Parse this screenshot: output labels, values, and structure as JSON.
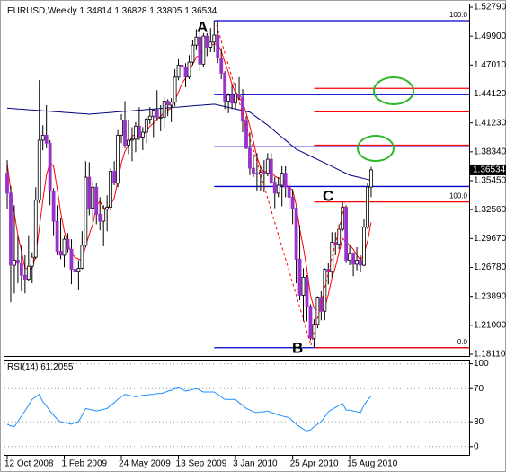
{
  "chart_data": [
    {
      "type": "candlestick",
      "title": "EURUSD,Weekly",
      "categories": [
        "12 Oct 2008",
        null,
        null,
        null,
        null,
        null,
        null,
        null,
        null,
        null,
        null,
        null,
        null,
        null,
        null,
        null,
        "1 Feb 2009",
        null,
        null,
        null,
        null,
        null,
        null,
        null,
        null,
        null,
        null,
        null,
        null,
        null,
        null,
        null,
        "24 May 2009",
        null,
        null,
        null,
        null,
        null,
        null,
        null,
        null,
        null,
        null,
        null,
        null,
        null,
        null,
        null,
        "13 Sep 2009",
        null,
        null,
        null,
        null,
        null,
        null,
        null,
        null,
        null,
        null,
        null,
        null,
        null,
        null,
        null,
        "3 Jan 2010",
        null,
        null,
        null,
        null,
        null,
        null,
        null,
        null,
        null,
        null,
        null,
        null,
        null,
        null,
        null,
        "25 Apr 2010",
        null,
        null,
        null,
        null,
        null,
        null,
        null,
        null,
        null,
        null,
        null,
        null,
        null,
        null,
        null,
        "15 Aug 2010",
        null,
        null,
        null,
        null,
        null,
        null
      ],
      "open": [
        1.362,
        1.342,
        1.27,
        1.275,
        1.272,
        1.26,
        1.256,
        1.269,
        1.278,
        1.335,
        1.395,
        1.4,
        1.392,
        1.344,
        1.314,
        1.284,
        1.28,
        1.296,
        1.286,
        1.266,
        1.264,
        1.267,
        1.29,
        1.358,
        1.327,
        1.348,
        1.321,
        1.314,
        1.326,
        1.328,
        1.364,
        1.352,
        1.4,
        1.415,
        1.39,
        1.395,
        1.396,
        1.409,
        1.398,
        1.403,
        1.416,
        1.419,
        1.425,
        1.418,
        1.418,
        1.434,
        1.43,
        1.433,
        1.458,
        1.47,
        1.468,
        1.458,
        1.473,
        1.49,
        1.498,
        1.471,
        1.499,
        1.488,
        1.493,
        1.5,
        1.477,
        1.462,
        1.434,
        1.44,
        1.432,
        1.441,
        1.438,
        1.414,
        1.387,
        1.367,
        1.362,
        1.361,
        1.363,
        1.362,
        1.376,
        1.353,
        1.342,
        1.35,
        1.362,
        1.348,
        1.338,
        1.327,
        1.276,
        1.24,
        1.258,
        1.229,
        1.197,
        1.211,
        1.238,
        1.224,
        1.266,
        1.264,
        1.293,
        1.291,
        1.306,
        1.328,
        1.275,
        1.282,
        1.271,
        1.275,
        1.27,
        1.308,
        1.34814
      ],
      "high": [
        1.375,
        1.349,
        1.33,
        1.3,
        1.29,
        1.28,
        1.3,
        1.283,
        1.348,
        1.455,
        1.41,
        1.43,
        1.395,
        1.347,
        1.33,
        1.317,
        1.3,
        1.302,
        1.296,
        1.293,
        1.275,
        1.304,
        1.374,
        1.373,
        1.354,
        1.352,
        1.338,
        1.33,
        1.34,
        1.367,
        1.374,
        1.405,
        1.421,
        1.434,
        1.415,
        1.408,
        1.413,
        1.428,
        1.408,
        1.418,
        1.428,
        1.426,
        1.445,
        1.43,
        1.438,
        1.436,
        1.437,
        1.466,
        1.476,
        1.484,
        1.472,
        1.48,
        1.495,
        1.506,
        1.505,
        1.502,
        1.502,
        1.507,
        1.5144,
        1.514,
        1.487,
        1.464,
        1.442,
        1.451,
        1.452,
        1.458,
        1.446,
        1.419,
        1.403,
        1.381,
        1.382,
        1.369,
        1.375,
        1.382,
        1.382,
        1.358,
        1.358,
        1.369,
        1.369,
        1.353,
        1.346,
        1.328,
        1.31,
        1.267,
        1.26,
        1.231,
        1.216,
        1.239,
        1.244,
        1.267,
        1.272,
        1.303,
        1.303,
        1.311,
        1.3333,
        1.33,
        1.29,
        1.283,
        1.288,
        1.28,
        1.316,
        1.352,
        1.36828
      ],
      "low": [
        1.326,
        1.233,
        1.242,
        1.252,
        1.244,
        1.242,
        1.254,
        1.252,
        1.276,
        1.332,
        1.385,
        1.387,
        1.33,
        1.3,
        1.28,
        1.276,
        1.268,
        1.283,
        1.251,
        1.258,
        1.245,
        1.266,
        1.288,
        1.32,
        1.312,
        1.311,
        1.305,
        1.289,
        1.304,
        1.325,
        1.35,
        1.348,
        1.392,
        1.387,
        1.381,
        1.374,
        1.383,
        1.395,
        1.385,
        1.392,
        1.411,
        1.398,
        1.414,
        1.404,
        1.408,
        1.419,
        1.413,
        1.429,
        1.455,
        1.458,
        1.448,
        1.456,
        1.47,
        1.485,
        1.464,
        1.468,
        1.479,
        1.483,
        1.483,
        1.472,
        1.456,
        1.426,
        1.422,
        1.426,
        1.426,
        1.435,
        1.403,
        1.386,
        1.36,
        1.358,
        1.344,
        1.344,
        1.343,
        1.359,
        1.351,
        1.327,
        1.338,
        1.329,
        1.338,
        1.326,
        1.311,
        1.252,
        1.235,
        1.214,
        1.214,
        1.195,
        1.1876,
        1.207,
        1.215,
        1.215,
        1.251,
        1.258,
        1.28,
        1.286,
        1.304,
        1.273,
        1.27,
        1.259,
        1.265,
        1.263,
        1.269,
        1.306,
        1.33805
      ],
      "close": [
        1.342,
        1.27,
        1.275,
        1.272,
        1.26,
        1.256,
        1.269,
        1.278,
        1.335,
        1.395,
        1.4,
        1.392,
        1.344,
        1.314,
        1.284,
        1.28,
        1.296,
        1.286,
        1.266,
        1.264,
        1.267,
        1.29,
        1.358,
        1.327,
        1.348,
        1.321,
        1.314,
        1.326,
        1.328,
        1.364,
        1.352,
        1.4,
        1.415,
        1.39,
        1.395,
        1.396,
        1.409,
        1.398,
        1.403,
        1.416,
        1.419,
        1.425,
        1.418,
        1.418,
        1.434,
        1.43,
        1.433,
        1.458,
        1.47,
        1.468,
        1.458,
        1.473,
        1.49,
        1.498,
        1.471,
        1.499,
        1.488,
        1.493,
        1.5,
        1.477,
        1.462,
        1.434,
        1.44,
        1.432,
        1.441,
        1.438,
        1.414,
        1.387,
        1.367,
        1.362,
        1.361,
        1.363,
        1.362,
        1.376,
        1.353,
        1.342,
        1.35,
        1.362,
        1.348,
        1.338,
        1.327,
        1.276,
        1.24,
        1.258,
        1.229,
        1.197,
        1.211,
        1.238,
        1.224,
        1.266,
        1.264,
        1.293,
        1.291,
        1.306,
        1.328,
        1.275,
        1.282,
        1.271,
        1.275,
        1.27,
        1.308,
        1.34814,
        1.36534
      ],
      "up_color": "#ffffff",
      "down_color": "#9932cc",
      "wick_color": "#000000",
      "series": [
        {
          "color": "#ff0000",
          "values": [
            1.372,
            1.345,
            1.322,
            1.3,
            1.284,
            1.267,
            1.266,
            1.267,
            1.28,
            1.307,
            1.335,
            1.36,
            1.373,
            1.369,
            1.347,
            1.323,
            1.304,
            1.292,
            1.282,
            1.278,
            1.276,
            1.275,
            1.289,
            1.301,
            1.311,
            1.329,
            1.334,
            1.327,
            1.327,
            1.331,
            1.337,
            1.354,
            1.372,
            1.384,
            1.39,
            1.399,
            1.401,
            1.398,
            1.4,
            1.404,
            1.409,
            1.412,
            1.416,
            1.419,
            1.423,
            1.425,
            1.427,
            1.435,
            1.443,
            1.452,
            1.457,
            1.463,
            1.471,
            1.478,
            1.48,
            1.487,
            1.489,
            1.49,
            1.491,
            1.491,
            1.484,
            1.473,
            1.463,
            1.451,
            1.442,
            1.437,
            1.433,
            1.422,
            1.409,
            1.394,
            1.378,
            1.368,
            1.363,
            1.365,
            1.363,
            1.359,
            1.357,
            1.357,
            1.351,
            1.348,
            1.345,
            1.33,
            1.306,
            1.288,
            1.266,
            1.24,
            1.227,
            1.225,
            1.224,
            1.227,
            1.241,
            1.257,
            1.268,
            1.283,
            1.297,
            1.293,
            1.29,
            1.286,
            1.28,
            1.275,
            1.281,
            1.294,
            1.313
          ]
        },
        {
          "color": "#000080",
          "values": [
            1.427,
            1.4267,
            1.4265,
            1.4262,
            1.426,
            1.4257,
            1.4254,
            1.4252,
            1.4249,
            1.4247,
            1.4244,
            1.4241,
            1.4239,
            1.4236,
            1.4233,
            1.4231,
            1.4228,
            1.4226,
            1.4223,
            1.422,
            1.4218,
            1.4215,
            1.4213,
            1.421,
            1.4213,
            1.4216,
            1.4219,
            1.4221,
            1.4224,
            1.4227,
            1.423,
            1.4233,
            1.4236,
            1.4239,
            1.4241,
            1.4244,
            1.4247,
            1.425,
            1.4253,
            1.4256,
            1.4259,
            1.4261,
            1.4264,
            1.4267,
            1.427,
            1.4273,
            1.4276,
            1.4279,
            1.4281,
            1.4284,
            1.4287,
            1.429,
            1.4293,
            1.4296,
            1.4299,
            1.4301,
            1.4304,
            1.4307,
            1.431,
            1.4302,
            1.4294,
            1.4286,
            1.4278,
            1.427,
            1.4262,
            1.4254,
            1.4246,
            1.4238,
            1.423,
            1.4204,
            1.4178,
            1.4152,
            1.4126,
            1.41,
            1.407,
            1.404,
            1.401,
            1.398,
            1.395,
            1.392,
            1.389,
            1.386,
            1.3843,
            1.3826,
            1.3809,
            1.3791,
            1.3774,
            1.3757,
            1.374,
            1.3723,
            1.3705,
            1.3688,
            1.367,
            1.3653,
            1.3635,
            1.3618,
            1.36,
            1.3592,
            1.3583,
            1.3575,
            1.3567,
            1.3558,
            1.355
          ]
        }
      ],
      "ylim": [
        1.1793,
        1.5315
      ],
      "yticks": [
        {
          "value": 1.5279,
          "label": "1.52790"
        },
        {
          "value": 1.499,
          "label": "1.49900"
        },
        {
          "value": 1.4701,
          "label": "1.47010"
        },
        {
          "value": 1.4412,
          "label": "1.44120"
        },
        {
          "value": 1.4123,
          "label": "1.41230"
        },
        {
          "value": 1.3834,
          "label": "1.38340"
        },
        {
          "value": 1.3545,
          "label": "1.35450"
        },
        {
          "value": 1.3256,
          "label": "1.32560"
        },
        {
          "value": 1.2967,
          "label": "1.29670"
        },
        {
          "value": 1.2678,
          "label": "1.26780"
        },
        {
          "value": 1.2389,
          "label": "1.23890"
        },
        {
          "value": 1.21,
          "label": "1.21000"
        },
        {
          "value": 1.1811,
          "label": "1.18110"
        }
      ],
      "levels": [
        {
          "color": "#0000cc",
          "values": [
            {
              "value": 1.5144,
              "label": "100.0"
            },
            1.4406,
            1.3884,
            1.3487,
            1.1876
          ]
        },
        {
          "color": "#ff0000",
          "values": [
            1.4468,
            1.4234,
            1.39,
            {
              "value": 1.3333,
              "label": "100.0"
            },
            {
              "value": 1.1876,
              "label": "0.0"
            }
          ]
        }
      ],
      "annotations": [
        "A",
        "B",
        "C"
      ]
    },
    {
      "type": "line",
      "title": "RSI(14)",
      "series": [
        {
          "color": "#1e90ff",
          "values": [
            27,
            25,
            24,
            30,
            37,
            43,
            50,
            57,
            60,
            63,
            54,
            49,
            43,
            38,
            33,
            30,
            29,
            28,
            27,
            29,
            30,
            38,
            46,
            45,
            44,
            43,
            44,
            45,
            46,
            50,
            53,
            57,
            60,
            63,
            62,
            61,
            60,
            61,
            62,
            62,
            63,
            63,
            64,
            64,
            65,
            67,
            68,
            70,
            71,
            69,
            67,
            68,
            69,
            70,
            68,
            66,
            66,
            66,
            66,
            63,
            60,
            57,
            57,
            57,
            57,
            53,
            50,
            46,
            44,
            42,
            41,
            42,
            42,
            43,
            41,
            40,
            38,
            37,
            36,
            35,
            31,
            27,
            24,
            21,
            19,
            20,
            24,
            27,
            30,
            36,
            42,
            45,
            47,
            50,
            52,
            44,
            44,
            43,
            42,
            41,
            50,
            56,
            61.2055
          ]
        }
      ],
      "ylim": [
        -10,
        105
      ],
      "yticks": [
        100,
        70,
        30,
        0
      ],
      "grid": true
    }
  ]
}
